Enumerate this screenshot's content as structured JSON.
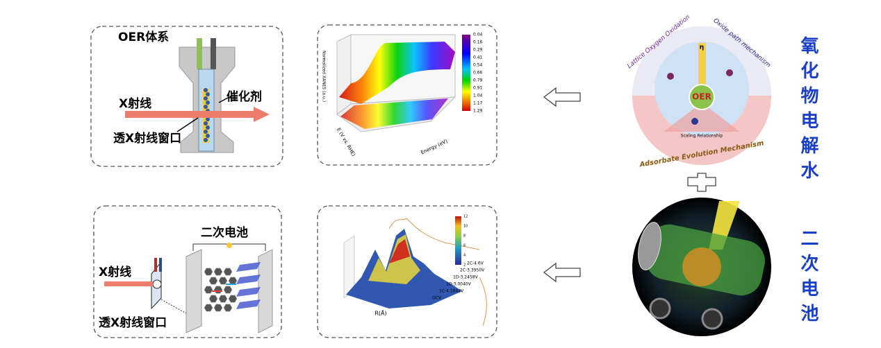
{
  "top_left": {
    "title": "OER体系",
    "xray": "X射线",
    "catalyst": "催化剂",
    "window": "透X射线窗口"
  },
  "top_plot": {
    "y_label": "Normalized XANES (a.u.)",
    "x_label": "Energy (eV)",
    "z_label": "E (V vs. RHE)",
    "colorbar": [
      "0.04",
      "0.16",
      "0.29",
      "0.41",
      "0.54",
      "0.66",
      "0.79",
      "0.91",
      "1.04",
      "1.17",
      "1.29"
    ]
  },
  "bottom_left": {
    "title": "二次电池",
    "xray": "X射线",
    "window": "透X射线窗口"
  },
  "bottom_plot": {
    "x_label": "R(Å)",
    "colorbar": [
      "12",
      "10",
      "8",
      "6",
      "4",
      "2"
    ],
    "curves": [
      "2C-4.6V",
      "2C-3.3950V",
      "1D-3.2458V",
      "1D-3.0040V",
      "1C-4.1642V",
      "OCV"
    ]
  },
  "oer_circle": {
    "top_left": "Lattice Oxygen Oxidation",
    "top_right": "Oxide path mechanism",
    "bottom": "Adsorbate Evolution Mechanism",
    "center": "OER",
    "scaling": "Scaling Relationship",
    "eta": "η"
  },
  "side_labels": [
    "氧化物电解水",
    "二次电池"
  ]
}
